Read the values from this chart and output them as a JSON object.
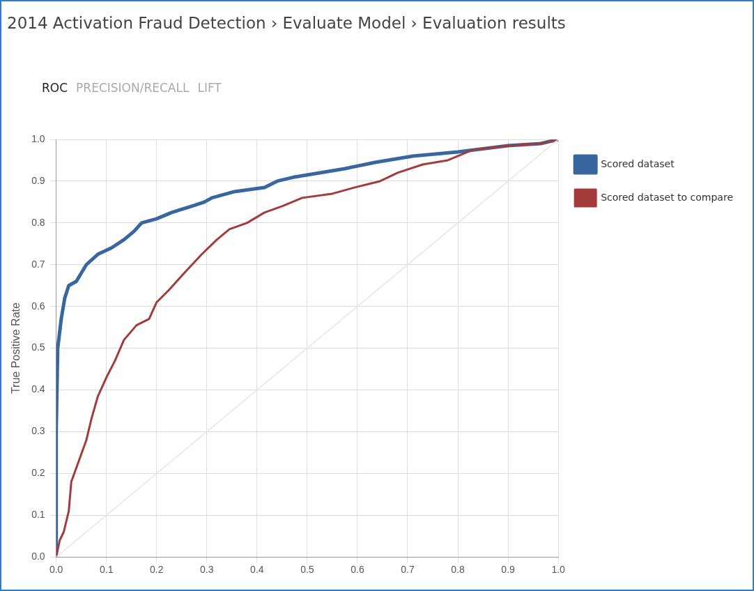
{
  "chart_data": {
    "type": "line",
    "title": "2014 Activation Fraud Detection › Evaluate Model › Evaluation results",
    "annotations": [
      "ROC",
      "PRECISION/RECALL",
      "LIFT"
    ],
    "ylabel": "True Positive Rate",
    "xlim": [
      0,
      1
    ],
    "ylim": [
      0,
      1
    ],
    "xticks": [
      {
        "value": 0,
        "label": "0.0"
      },
      0.1,
      0.2,
      0.3,
      0.4,
      0.5,
      0.6,
      0.7,
      0.8,
      0.9,
      {
        "value": 1,
        "label": "1.0"
      }
    ],
    "yticks": [
      {
        "value": 0,
        "label": "0.0"
      },
      0.1,
      0.2,
      0.3,
      0.4,
      0.5,
      0.6,
      0.7,
      0.8,
      0.9,
      {
        "value": 1,
        "label": "1.0"
      }
    ],
    "grid": true,
    "legend": "top right",
    "marker": "none",
    "series": [
      {
        "color": "#e6e6e6",
        "x": [
          0,
          1
        ],
        "values": [
          0,
          1
        ]
      },
      {
        "name": "Scored dataset to compare",
        "color": "#a33b3b",
        "x": [
          0,
          0.007,
          0.015,
          0.025,
          0.03,
          0.045,
          0.06,
          0.07,
          0.083,
          0.1,
          0.117,
          0.135,
          0.16,
          0.185,
          0.2,
          0.225,
          0.255,
          0.29,
          0.32,
          0.345,
          0.38,
          0.415,
          0.45,
          0.49,
          0.55,
          0.595,
          0.645,
          0.68,
          0.73,
          0.78,
          0.83,
          0.9,
          0.965,
          1
        ],
        "values": [
          0,
          0.04,
          0.06,
          0.11,
          0.18,
          0.23,
          0.28,
          0.33,
          0.385,
          0.43,
          0.47,
          0.52,
          0.555,
          0.57,
          0.61,
          0.64,
          0.68,
          0.725,
          0.76,
          0.785,
          0.8,
          0.825,
          0.84,
          0.86,
          0.87,
          0.885,
          0.9,
          0.92,
          0.94,
          0.95,
          0.975,
          0.985,
          0.99,
          1
        ]
      },
      {
        "name": "Scored dataset",
        "color": "#3a66a0",
        "x": [
          0,
          0,
          0.003,
          0.01,
          0.017,
          0.025,
          0.04,
          0.06,
          0.083,
          0.11,
          0.135,
          0.155,
          0.17,
          0.2,
          0.23,
          0.27,
          0.295,
          0.31,
          0.355,
          0.415,
          0.44,
          0.475,
          0.525,
          0.575,
          0.635,
          0.71,
          0.8,
          0.9,
          0.965,
          1
        ],
        "values": [
          0,
          0.3,
          0.5,
          0.57,
          0.62,
          0.65,
          0.66,
          0.7,
          0.725,
          0.74,
          0.76,
          0.78,
          0.8,
          0.81,
          0.825,
          0.84,
          0.85,
          0.86,
          0.875,
          0.885,
          0.9,
          0.91,
          0.92,
          0.93,
          0.945,
          0.96,
          0.97,
          0.985,
          0.99,
          1
        ]
      }
    ]
  }
}
